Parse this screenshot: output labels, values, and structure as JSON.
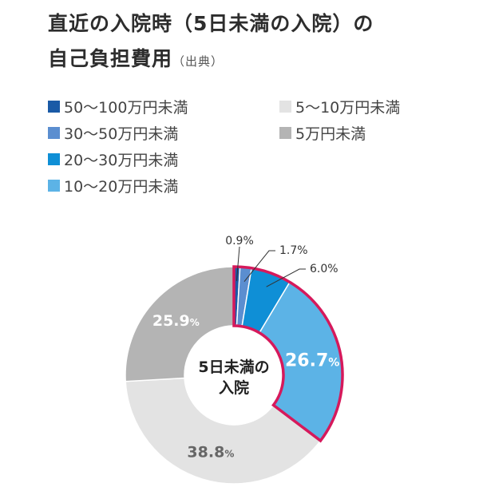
{
  "header": {
    "title_line1": "直近の入院時（5日未満の入院）の",
    "title_line2": "自己負担費用",
    "source_note": "（出典）"
  },
  "center_label": {
    "line1": "5日未満の",
    "line2": "入院"
  },
  "chart_data": {
    "type": "pie",
    "donut": true,
    "start_angle_deg": 0,
    "direction": "clockwise",
    "unit": "%",
    "slices": [
      {
        "label": "50〜100万円未満",
        "value": 0.9,
        "value_label": "0.9%",
        "color": "#1a5aa6",
        "highlight": true
      },
      {
        "label": "30〜50万円未満",
        "value": 1.7,
        "value_label": "1.7%",
        "color": "#5b8ed0",
        "highlight": true
      },
      {
        "label": "20〜30万円未満",
        "value": 6.0,
        "value_label": "6.0%",
        "color": "#0f8fd6",
        "highlight": true
      },
      {
        "label": "10〜20万円未満",
        "value": 26.7,
        "value_label": "26.7",
        "value_unit": "%",
        "color": "#5cb3e6",
        "highlight": true
      },
      {
        "label": "5〜10万円未満",
        "value": 38.8,
        "value_label": "38.8",
        "value_unit": "%",
        "color": "#e3e3e3",
        "highlight": false
      },
      {
        "label": "5万円未満",
        "value": 25.9,
        "value_label": "25.9",
        "value_unit": "%",
        "color": "#b4b4b4",
        "highlight": false
      }
    ],
    "legend": [
      {
        "label": "50〜100万円未満",
        "color": "#1a5aa6"
      },
      {
        "label": "30〜50万円未満",
        "color": "#5b8ed0"
      },
      {
        "label": "20〜30万円未満",
        "color": "#0f8fd6"
      },
      {
        "label": "10〜20万円未満",
        "color": "#5cb3e6"
      },
      {
        "label": "5〜10万円未満",
        "color": "#e3e3e3"
      },
      {
        "label": "5万円未満",
        "color": "#b4b4b4"
      }
    ],
    "highlight_color": "#d6195b"
  }
}
